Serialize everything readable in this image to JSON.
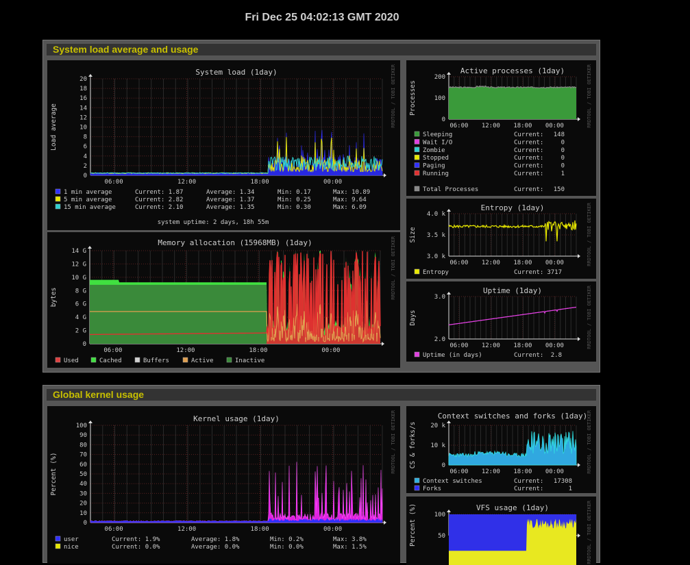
{
  "datetime": "Fri Dec 25 04:02:13 GMT 2020",
  "sections": [
    {
      "title": "System load average and usage"
    },
    {
      "title": "Global kernel usage"
    }
  ],
  "watermark": "RRDTOOL / TOBI OETIKER",
  "charts": {
    "system_load": {
      "title": "System load  (1day)",
      "ylabel": "Load average",
      "yticks": [
        "20",
        "18",
        "16",
        "14",
        "12",
        "10",
        "8",
        "6",
        "4",
        "2",
        "0"
      ],
      "xticks": [
        "06:00",
        "12:00",
        "18:00",
        "00:00"
      ],
      "legend": [
        {
          "label": "1 min average",
          "color": "#3030ff",
          "current": "Current: 1.87",
          "average": "Average: 1.34",
          "min": "Min: 0.17",
          "max": "Max: 10.89"
        },
        {
          "label": "5 min average",
          "color": "#e8e800",
          "current": "Current: 2.82",
          "average": "Average: 1.37",
          "min": "Min: 0.25",
          "max": "Max: 9.64"
        },
        {
          "label": "15 min average",
          "color": "#30d0d0",
          "current": "Current: 2.10",
          "average": "Average: 1.35",
          "min": "Min: 0.30",
          "max": "Max: 6.09"
        }
      ],
      "footer": "system uptime: 2 days, 18h 55m"
    },
    "memory": {
      "title": "Memory allocation (15968MB)  (1day)",
      "ylabel": "bytes",
      "yticks": [
        "14 G",
        "12 G",
        "10 G",
        "8 G",
        "6 G",
        "4 G",
        "2 G",
        "0"
      ],
      "xticks": [
        "06:00",
        "12:00",
        "18:00",
        "00:00"
      ],
      "legend": [
        {
          "label": "Used",
          "color": "#e04040"
        },
        {
          "label": "Cached",
          "color": "#40e040"
        },
        {
          "label": "Buffers",
          "color": "#d0d0d0"
        },
        {
          "label": "Active",
          "color": "#e0a050"
        },
        {
          "label": "Inactive",
          "color": "#3a8a3a"
        }
      ]
    },
    "processes": {
      "title": "Active processes  (1day)",
      "ylabel": "Processes",
      "yticks": [
        "200",
        "100",
        "0"
      ],
      "xticks": [
        "06:00",
        "12:00",
        "18:00",
        "00:00"
      ],
      "legend": [
        {
          "label": "Sleeping",
          "color": "#3a9a3a",
          "current": "Current:",
          "value": "148"
        },
        {
          "label": "Wait I/O",
          "color": "#e040e0",
          "current": "Current:",
          "value": "0"
        },
        {
          "label": "Zombie",
          "color": "#30d0d0",
          "current": "Current:",
          "value": "0"
        },
        {
          "label": "Stopped",
          "color": "#e8e800",
          "current": "Current:",
          "value": "0"
        },
        {
          "label": "Paging",
          "color": "#3030ff",
          "current": "Current:",
          "value": "0"
        },
        {
          "label": "Running",
          "color": "#e03030",
          "current": "Current:",
          "value": "1"
        }
      ],
      "total": {
        "label": "Total Processes",
        "color": "#888888",
        "current": "Current:",
        "value": "150"
      }
    },
    "entropy": {
      "title": "Entropy  (1day)",
      "ylabel": "Size",
      "yticks": [
        "4.0 k",
        "3.5 k",
        "3.0 k"
      ],
      "xticks": [
        "06:00",
        "12:00",
        "18:00",
        "00:00"
      ],
      "legend": [
        {
          "label": "Entropy",
          "color": "#e8e800",
          "current": "Current:",
          "value": "3717"
        }
      ]
    },
    "uptime": {
      "title": "Uptime  (1day)",
      "ylabel": "Days",
      "yticks": [
        "3.0",
        "2.0"
      ],
      "xticks": [
        "06:00",
        "12:00",
        "18:00",
        "00:00"
      ],
      "legend": [
        {
          "label": "Uptime  (in days)",
          "color": "#e040e0",
          "current": "Current:",
          "value": "2.8"
        }
      ]
    },
    "kernel": {
      "title": "Kernel usage  (1day)",
      "ylabel": "Percent (%)",
      "yticks": [
        "100",
        "90",
        "80",
        "70",
        "60",
        "50",
        "40",
        "30",
        "20",
        "10",
        "0"
      ],
      "xticks": [
        "06:00",
        "12:00",
        "18:00",
        "00:00"
      ],
      "legend": [
        {
          "label": "user",
          "color": "#3030ff",
          "current": "Current:  1.9%",
          "average": "Average:  1.8%",
          "min": "Min:  0.2%",
          "max": "Max:  3.8%"
        },
        {
          "label": "nice",
          "color": "#e8e800",
          "current": "Current:  0.0%",
          "average": "Average:  0.0%",
          "min": "Min:  0.0%",
          "max": "Max:  1.5%"
        }
      ]
    },
    "context": {
      "title": "Context switches and forks  (1day)",
      "ylabel": "CS & forks/s",
      "yticks": [
        "20 k",
        "10 k",
        "0"
      ],
      "xticks": [
        "06:00",
        "12:00",
        "18:00",
        "00:00"
      ],
      "legend": [
        {
          "label": "Context switches",
          "color": "#30b0e0",
          "current": "Current:",
          "value": "17308"
        },
        {
          "label": "Forks",
          "color": "#3030ff",
          "current": "Current:",
          "value": "1"
        }
      ]
    },
    "vfs": {
      "title": "VFS usage  (1day)",
      "ylabel": "Percent (%)",
      "yticks": [
        "100",
        "50"
      ]
    }
  }
}
